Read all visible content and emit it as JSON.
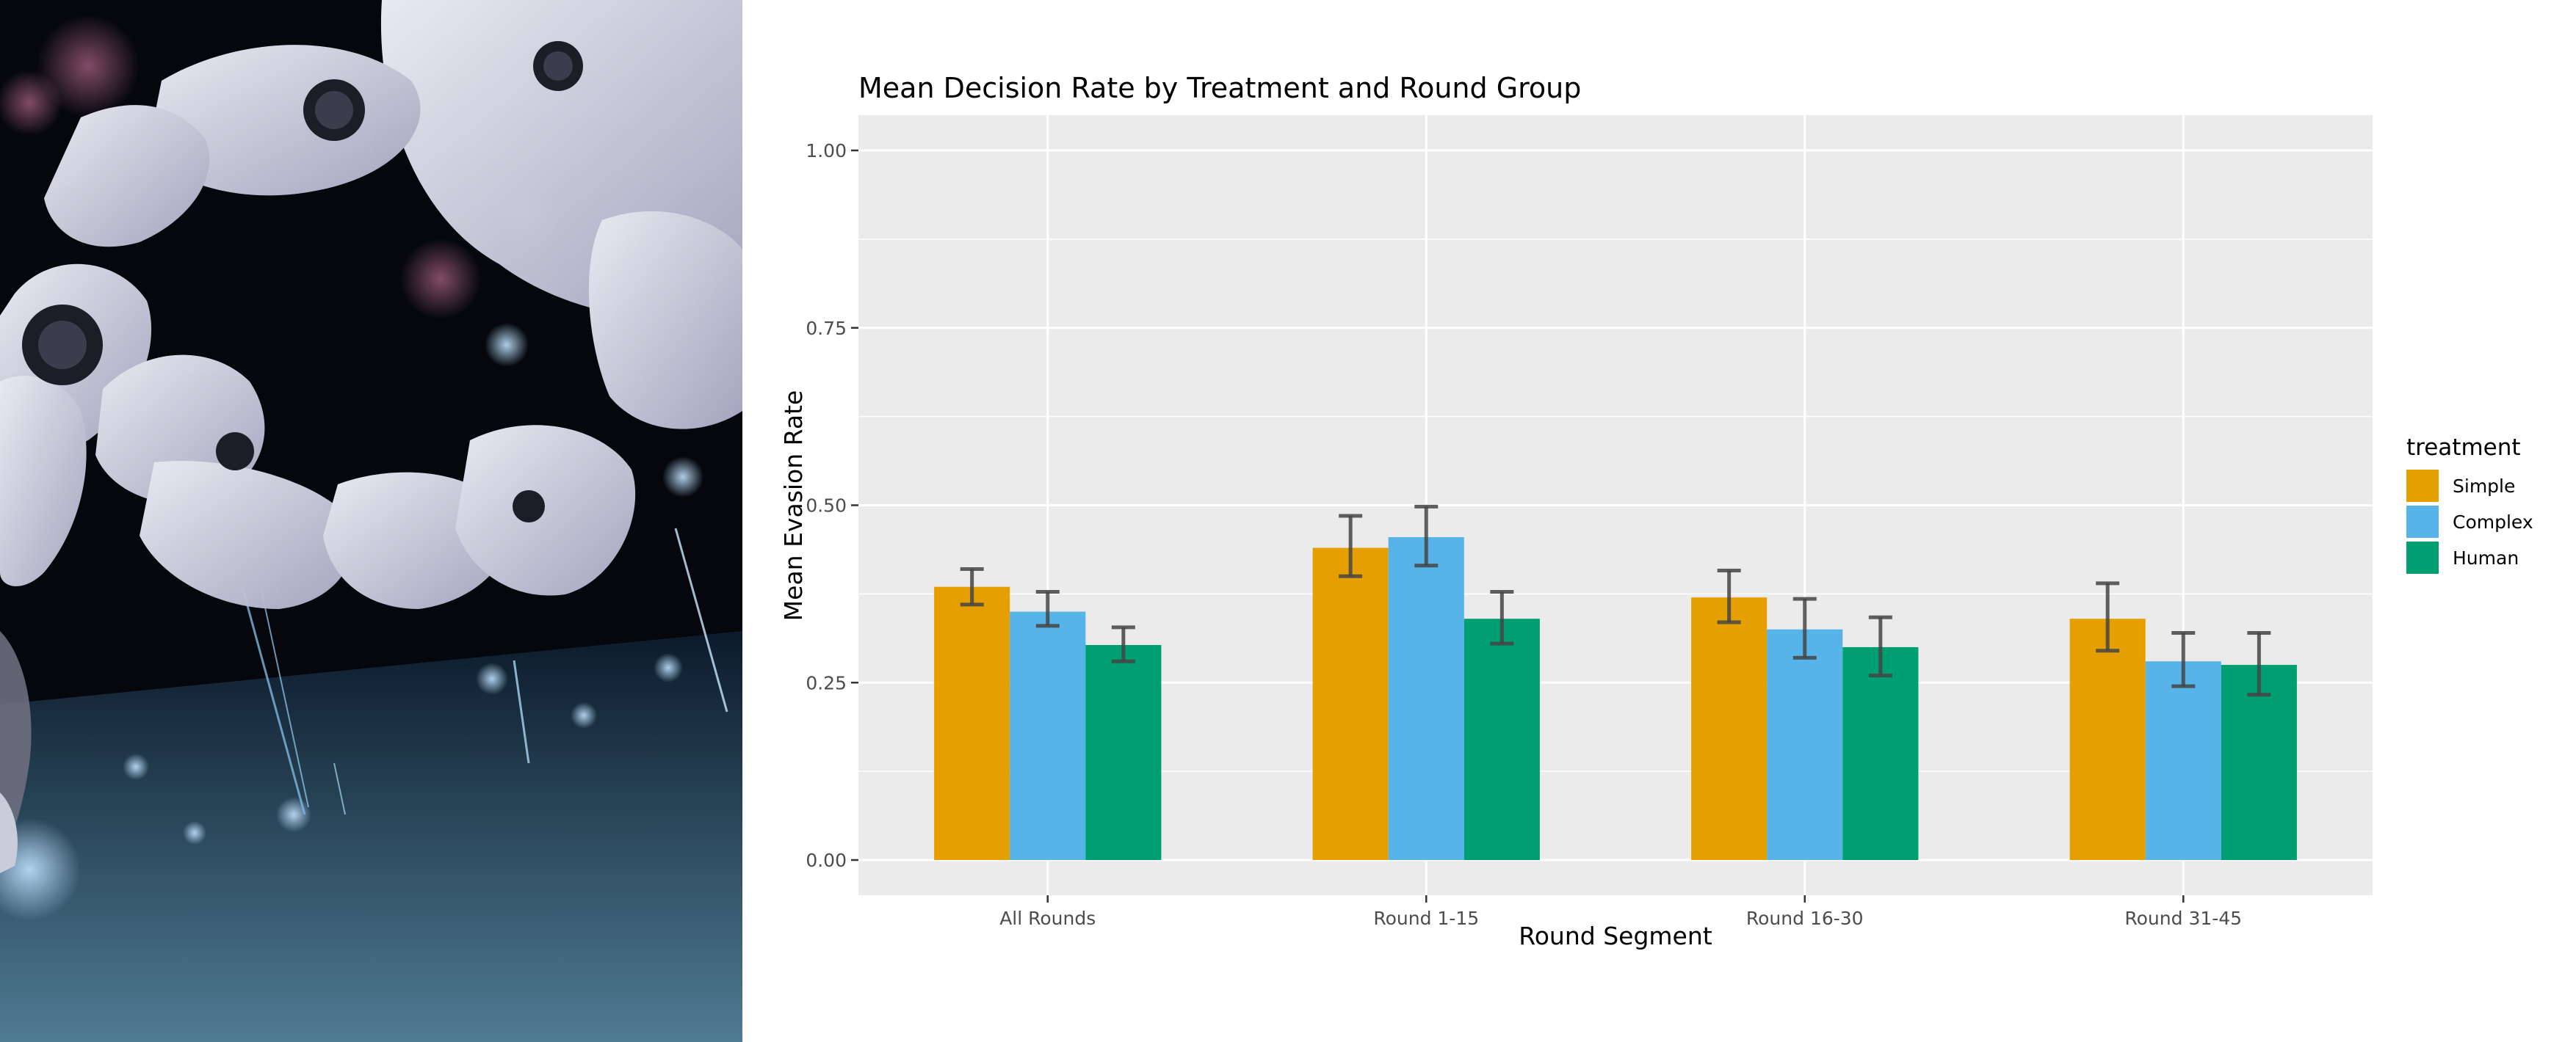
{
  "image_panel": {
    "icon": "robot-arm-photo",
    "description_colors": [
      "#05070d",
      "#d9dbe8",
      "#6fa4c6"
    ]
  },
  "chart_data": {
    "type": "bar",
    "title": "Mean Decision Rate by Treatment and Round Group",
    "xlabel": "Round Segment",
    "ylabel": "Mean Evasion Rate",
    "ylim": [
      0,
      1.05
    ],
    "yticks": [
      0.0,
      0.25,
      0.5,
      0.75,
      1.0
    ],
    "ytick_labels": [
      "0.00",
      "0.25",
      "0.50",
      "0.75",
      "1.00"
    ],
    "categories": [
      "All Rounds",
      "Round 1-15",
      "Round 16-30",
      "Round 31-45"
    ],
    "legend_title": "treatment",
    "legend_position": "right",
    "grid": true,
    "series": [
      {
        "name": "Simple",
        "color": "#E69F00",
        "values": [
          0.385,
          0.44,
          0.37,
          0.34
        ],
        "err_low": [
          0.36,
          0.4,
          0.335,
          0.295
        ],
        "err_high": [
          0.41,
          0.485,
          0.408,
          0.39
        ]
      },
      {
        "name": "Complex",
        "color": "#56B4E9",
        "values": [
          0.35,
          0.455,
          0.325,
          0.28
        ],
        "err_low": [
          0.33,
          0.415,
          0.285,
          0.245
        ],
        "err_high": [
          0.378,
          0.498,
          0.368,
          0.32
        ]
      },
      {
        "name": "Human",
        "color": "#009E73",
        "values": [
          0.303,
          0.34,
          0.3,
          0.275
        ],
        "err_low": [
          0.28,
          0.305,
          0.26,
          0.233
        ],
        "err_high": [
          0.328,
          0.378,
          0.342,
          0.32
        ]
      }
    ]
  }
}
